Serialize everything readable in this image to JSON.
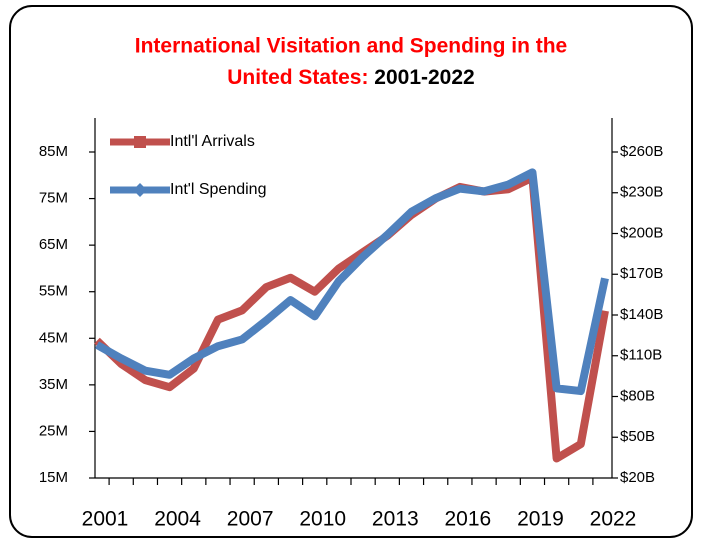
{
  "chart_data": {
    "type": "line",
    "title_lines": [
      "International Visitation and Spending in the",
      "United States:"
    ],
    "title_years": "2001-2022",
    "title_color": "#ff0000",
    "categories": [
      "2001",
      null,
      null,
      "2004",
      null,
      null,
      "2007",
      null,
      null,
      "2010",
      null,
      null,
      "2013",
      null,
      null,
      "2016",
      null,
      null,
      "2019",
      null,
      null,
      "2022"
    ],
    "series": [
      {
        "name": "Intl'l Arrivals",
        "color": "#c0504d",
        "marker": "square",
        "values": [
          44.5,
          39.5,
          36,
          34.5,
          38.5,
          49,
          51,
          56,
          58,
          55,
          60,
          63.5,
          67,
          71.5,
          75,
          77.5,
          76.5,
          77,
          79.5,
          19.2,
          22.3,
          50.9
        ]
      },
      {
        "name": "Int'l Spending",
        "color": "#4f81bd",
        "marker": "diamond",
        "axis": "y2",
        "values": [
          118,
          108,
          99,
          96,
          108,
          117,
          122,
          136,
          151,
          139,
          165,
          183,
          199,
          216,
          226,
          233,
          231,
          236,
          245,
          86,
          84,
          167
        ]
      }
    ],
    "ylim": [
      15,
      85
    ],
    "yticks": [
      {
        "value": 15,
        "label": "15M"
      },
      {
        "value": 25,
        "label": "25M"
      },
      {
        "value": 35,
        "label": "35M"
      },
      {
        "value": 45,
        "label": "45M"
      },
      {
        "value": 55,
        "label": "55M"
      },
      {
        "value": 65,
        "label": "65M"
      },
      {
        "value": 75,
        "label": "75M"
      },
      {
        "value": 85,
        "label": "85M"
      }
    ],
    "y2lim": [
      20,
      260
    ],
    "y2ticks": [
      {
        "value": 20,
        "label": "$20B"
      },
      {
        "value": 50,
        "label": "$50B"
      },
      {
        "value": 80,
        "label": "$80B"
      },
      {
        "value": 110,
        "label": "$110B"
      },
      {
        "value": 140,
        "label": "$140B"
      },
      {
        "value": 170,
        "label": "$170B"
      },
      {
        "value": 200,
        "label": "$200B"
      },
      {
        "value": 230,
        "label": "$230B"
      },
      {
        "value": 260,
        "label": "$260B"
      }
    ],
    "legend": "upper left"
  }
}
